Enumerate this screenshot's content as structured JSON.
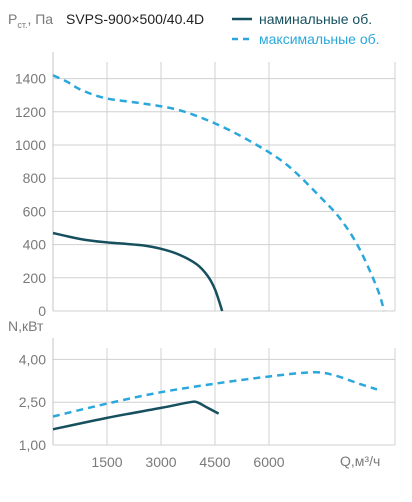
{
  "chart_data": {
    "title": "SVPS-900×500/40.4D",
    "legend": [
      {
        "name": "наминальные об.",
        "color": "#16505f",
        "style": "solid"
      },
      {
        "name": "максимальные об.",
        "color": "#2aa8dc",
        "style": "dashed"
      }
    ],
    "legend_position": "top-right",
    "grid": true,
    "x": {
      "label": "Q,м³/ч",
      "ticks": [
        1500,
        3000,
        4500,
        6000
      ],
      "tick_labels": [
        "1500",
        "3000",
        "4500",
        "6000"
      ],
      "range": [
        0,
        9500
      ]
    },
    "charts": [
      {
        "id": "pressure",
        "type": "line",
        "ylabel_main": "P",
        "ylabel_sub": "ст.",
        "ylabel_unit": ", Па",
        "ylim": [
          0,
          1500
        ],
        "yticks": [
          0,
          200,
          400,
          600,
          800,
          1000,
          1200,
          1400
        ],
        "ytick_labels": [
          "0",
          "200",
          "400",
          "600",
          "800",
          "1000",
          "1200",
          "1400"
        ],
        "series": [
          {
            "name": "наминальные об.",
            "points": [
              [
                0,
                470
              ],
              [
                500,
                445
              ],
              [
                1000,
                425
              ],
              [
                1500,
                413
              ],
              [
                2000,
                405
              ],
              [
                2500,
                395
              ],
              [
                3000,
                375
              ],
              [
                3500,
                340
              ],
              [
                4000,
                280
              ],
              [
                4300,
                210
              ],
              [
                4500,
                130
              ],
              [
                4700,
                0
              ]
            ]
          },
          {
            "name": "максимальные об.",
            "points": [
              [
                0,
                1420
              ],
              [
                400,
                1380
              ],
              [
                800,
                1330
              ],
              [
                1500,
                1280
              ],
              [
                2500,
                1250
              ],
              [
                3500,
                1210
              ],
              [
                4500,
                1130
              ],
              [
                5500,
                1020
              ],
              [
                6500,
                880
              ],
              [
                7500,
                670
              ],
              [
                8000,
                550
              ],
              [
                8500,
                380
              ],
              [
                9000,
                140
              ],
              [
                9200,
                0
              ]
            ]
          }
        ]
      },
      {
        "id": "power",
        "type": "line",
        "ylabel_main": "N,кВт",
        "ylim": [
          1.0,
          4.4
        ],
        "yticks": [
          1.0,
          2.5,
          4.0
        ],
        "ytick_labels": [
          "1,00",
          "2,50",
          "4,00"
        ],
        "series": [
          {
            "name": "наминальные об.",
            "points": [
              [
                0,
                1.55
              ],
              [
                1500,
                1.95
              ],
              [
                3000,
                2.3
              ],
              [
                3800,
                2.5
              ],
              [
                4000,
                2.5
              ],
              [
                4300,
                2.3
              ],
              [
                4600,
                2.1
              ]
            ]
          },
          {
            "name": "максимальные об.",
            "points": [
              [
                0,
                2.0
              ],
              [
                1500,
                2.45
              ],
              [
                3000,
                2.85
              ],
              [
                4500,
                3.15
              ],
              [
                6000,
                3.4
              ],
              [
                7200,
                3.55
              ],
              [
                7800,
                3.45
              ],
              [
                8500,
                3.15
              ],
              [
                9000,
                2.95
              ]
            ]
          }
        ]
      }
    ]
  }
}
